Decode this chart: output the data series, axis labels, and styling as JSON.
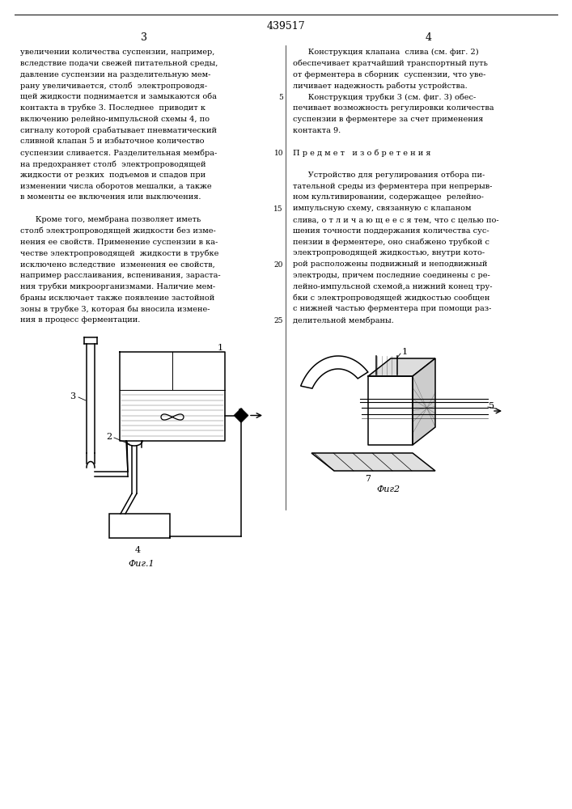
{
  "page_title": "439517",
  "col_left_num": "3",
  "col_right_num": "4",
  "text_left": [
    "увеличении количества суспензии, например,",
    "вследствие подачи свежей питательной среды,",
    "давление суспензии на разделительную мем-",
    "рану увеличивается, столб  электропроводя-",
    "щей жидкости поднимается и замыкаются оба",
    "контакта в трубке 3. Последнее  приводит к",
    "включению релейно-импульсной схемы 4, по",
    "сигналу которой срабатывает пневматический",
    "сливной клапан 5 и избыточное количество",
    "суспензии сливается. Разделительная мембра-",
    "на предохраняет столб  электропроводящей",
    "жидкости от резких  подъемов и спадов при",
    "изменении числа оборотов мешалки, а также",
    "в моменты ее включения или выключения.",
    "",
    "      Кроме того, мембрана позволяет иметь",
    "столб электропроводящей жидкости без изме-",
    "нения ее свойств. Применение суспензии в ка-",
    "честве электропроводящей  жидкости в трубке",
    "исключено вследствие  изменения ее свойств,",
    "например расслаивания, вспенивания, зараста-",
    "ния трубки микроорганизмами. Наличие мем-",
    "браны исключает также появление застойной",
    "зоны в трубке 3, которая бы вносила измене-",
    "ния в процесс ферментации."
  ],
  "text_right": [
    "      Конструкция клапана  слива (см. фиг. 2)",
    "обеспечивает кратчайший транспортный путь",
    "от ферментера в сборник  суспензии, что уве-",
    "личивает надежность работы устройства.",
    "      Конструкция трубки 3 (см. фиг. 3) обес-",
    "печивает возможность регулировки количества",
    "суспензии в ферментере за счет применения",
    "контакта 9.",
    "",
    "П р е д м е т   и з о б р е т е н и я",
    "",
    "      Устройство для регулирования отбора пи-",
    "тательной среды из ферментера при непрерыв-",
    "ном культивировании, содержащее  релейно-",
    "импульсную схему, связанную с клапаном",
    "слива, о т л и ч а ю щ е е с я тем, что с целью по-",
    "шения точности поддержания количества сус-",
    "пензии в ферментере, оно снабжено трубкой с",
    "электропроводящей жидкостью, внутри кото-",
    "рой расположены подвижный и неподвижный",
    "электроды, причем последние соединены с ре-",
    "лейно-импульсной схемой,а нижний конец тру-",
    "бки с электропроводящей жидкостью сообщен",
    "с нижней частью ферментера при помощи раз-",
    "делительной мембраны."
  ],
  "line_numbers": [
    5,
    10,
    15,
    20,
    25
  ],
  "fig1_label": "Фиг.1",
  "fig2_label": "Фиг2",
  "bg_color": "#ffffff",
  "text_color": "#000000"
}
